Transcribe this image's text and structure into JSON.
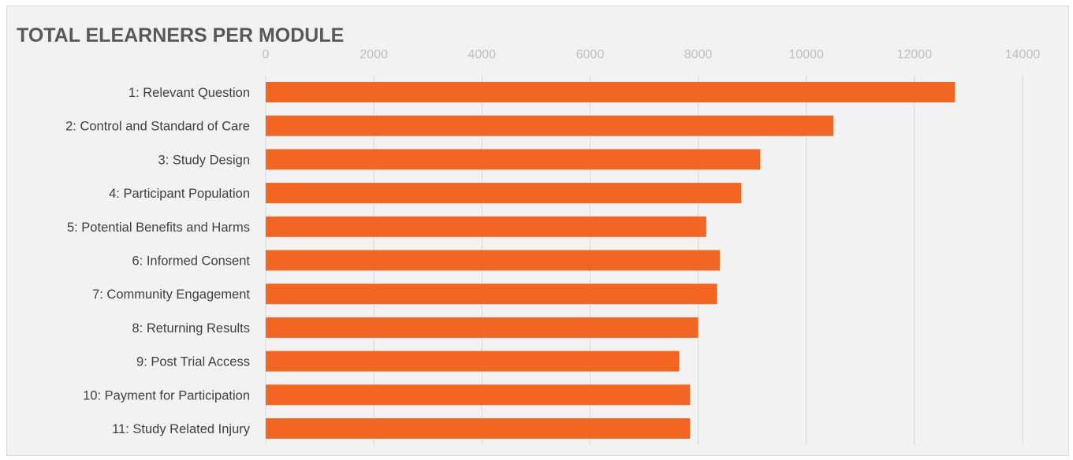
{
  "chart_data": {
    "type": "bar",
    "orientation": "horizontal",
    "title": "TOTAL ELEARNERS PER MODULE",
    "xlabel": "",
    "ylabel": "",
    "xlim": [
      0,
      14000
    ],
    "x_ticks": [
      "0",
      "2000",
      "4000",
      "6000",
      "8000",
      "10000",
      "12000",
      "14000"
    ],
    "x_axis_position": "top",
    "grid": true,
    "legend": "none",
    "bar_color": "#f26522",
    "categories": [
      "1: Relevant Question",
      "2: Control and Standard of Care",
      "3: Study Design",
      "4: Participant Population",
      "5: Potential Benefits and Harms",
      "6: Informed Consent ",
      "7: Community Engagement",
      "8: Returning Results",
      "9: Post Trial Access",
      "10: Payment for Participation",
      "11: Study Related Injury"
    ],
    "values": [
      12750,
      10500,
      9150,
      8800,
      8150,
      8400,
      8350,
      8000,
      7650,
      7850,
      7850
    ]
  }
}
